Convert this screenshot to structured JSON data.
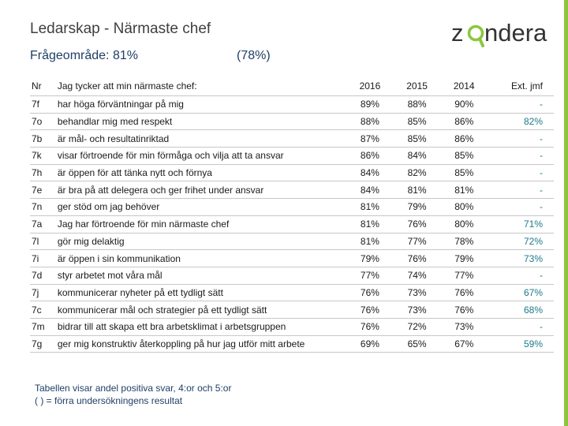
{
  "title": "Ledarskap - Närmaste chef",
  "subtitle": "Frågeområde: 81%",
  "subtitle_prev": "(78%)",
  "brand": {
    "logo_text_before": "z",
    "logo_text_after": "ndera",
    "colors": {
      "accent": "#8cc63f",
      "dark": "#333333"
    }
  },
  "table": {
    "headers": {
      "nr": "Nr",
      "question": "Jag tycker att min närmaste chef:",
      "y2016": "2016",
      "y2015": "2015",
      "y2014": "2014",
      "ext": "Ext. jmf"
    },
    "rows": [
      {
        "nr": "7f",
        "question": "har höga förväntningar på mig",
        "y2016": "89%",
        "y2015": "88%",
        "y2014": "90%",
        "ext": "-"
      },
      {
        "nr": "7o",
        "question": "behandlar mig med respekt",
        "y2016": "88%",
        "y2015": "85%",
        "y2014": "86%",
        "ext": "82%"
      },
      {
        "nr": "7b",
        "question": "är mål- och resultatinriktad",
        "y2016": "87%",
        "y2015": "85%",
        "y2014": "86%",
        "ext": "-"
      },
      {
        "nr": "7k",
        "question": "visar förtroende för min förmåga och vilja att ta ansvar",
        "y2016": "86%",
        "y2015": "84%",
        "y2014": "85%",
        "ext": "-"
      },
      {
        "nr": "7h",
        "question": "är öppen för att tänka nytt och förnya",
        "y2016": "84%",
        "y2015": "82%",
        "y2014": "85%",
        "ext": "-"
      },
      {
        "nr": "7e",
        "question": "är bra på att delegera och ger frihet under ansvar",
        "y2016": "84%",
        "y2015": "81%",
        "y2014": "81%",
        "ext": "-"
      },
      {
        "nr": "7n",
        "question": "ger stöd om jag behöver",
        "y2016": "81%",
        "y2015": "79%",
        "y2014": "80%",
        "ext": "-"
      },
      {
        "nr": "7a",
        "question": "Jag har förtroende för min närmaste chef",
        "y2016": "81%",
        "y2015": "76%",
        "y2014": "80%",
        "ext": "71%"
      },
      {
        "nr": "7l",
        "question": "gör mig delaktig",
        "y2016": "81%",
        "y2015": "77%",
        "y2014": "78%",
        "ext": "72%"
      },
      {
        "nr": "7i",
        "question": "är öppen i sin kommunikation",
        "y2016": "79%",
        "y2015": "76%",
        "y2014": "79%",
        "ext": "73%"
      },
      {
        "nr": "7d",
        "question": "styr arbetet mot våra mål",
        "y2016": "77%",
        "y2015": "74%",
        "y2014": "77%",
        "ext": "-"
      },
      {
        "nr": "7j",
        "question": "kommunicerar nyheter på ett tydligt sätt",
        "y2016": "76%",
        "y2015": "73%",
        "y2014": "76%",
        "ext": "67%"
      },
      {
        "nr": "7c",
        "question": "kommunicerar mål och strategier på ett tydligt sätt",
        "y2016": "76%",
        "y2015": "73%",
        "y2014": "76%",
        "ext": "68%"
      },
      {
        "nr": "7m",
        "question": "bidrar till att skapa ett bra arbetsklimat i arbetsgruppen",
        "y2016": "76%",
        "y2015": "72%",
        "y2014": "73%",
        "ext": "-"
      },
      {
        "nr": "7g",
        "question": "ger mig konstruktiv återkoppling på hur jag utför mitt arbete",
        "y2016": "69%",
        "y2015": "65%",
        "y2014": "67%",
        "ext": "59%"
      }
    ]
  },
  "footnote": {
    "line1": "Tabellen visar andel positiva svar, 4:or och 5:or",
    "line2": "( ) = förra undersökningens resultat"
  }
}
